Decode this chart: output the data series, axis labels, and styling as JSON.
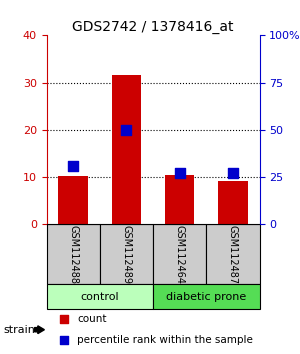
{
  "title": "GDS2742 / 1378416_at",
  "samples": [
    "GSM112488",
    "GSM112489",
    "GSM112464",
    "GSM112487"
  ],
  "counts": [
    10.2,
    31.5,
    10.3,
    9.2
  ],
  "percentiles": [
    31,
    50,
    27,
    27
  ],
  "ylim_left": [
    0,
    40
  ],
  "ylim_right": [
    0,
    100
  ],
  "yticks_left": [
    0,
    10,
    20,
    30,
    40
  ],
  "yticks_right": [
    0,
    25,
    50,
    75,
    100
  ],
  "ytick_labels_right": [
    "0",
    "25",
    "50",
    "75",
    "100%"
  ],
  "bar_color": "#cc0000",
  "dot_color": "#0000cc",
  "groups": [
    {
      "label": "control",
      "indices": [
        0,
        1
      ],
      "color": "#bbffbb"
    },
    {
      "label": "diabetic prone",
      "indices": [
        2,
        3
      ],
      "color": "#55dd55"
    }
  ],
  "sample_box_color": "#cccccc",
  "background_color": "#ffffff",
  "title_color": "#000000",
  "left_axis_color": "#cc0000",
  "right_axis_color": "#0000cc",
  "bar_width": 0.55,
  "dot_size": 45,
  "legend_count_label": "count",
  "legend_percentile_label": "percentile rank within the sample",
  "strain_label": "strain"
}
